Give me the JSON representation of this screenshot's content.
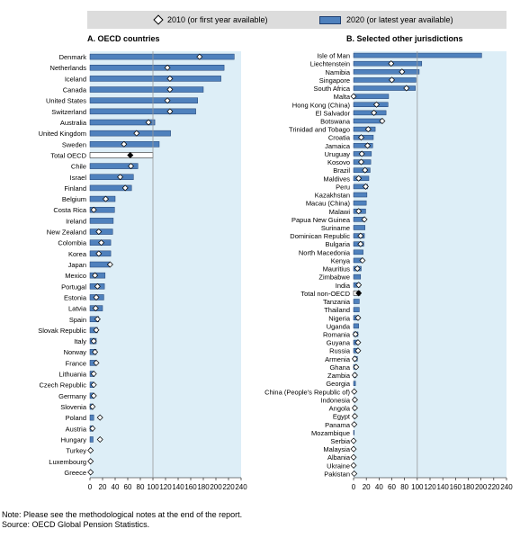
{
  "legend": {
    "items": [
      {
        "label": "2010 (or first year available)",
        "marker": "hollow-diamond"
      },
      {
        "label": "2020 (or latest year available)",
        "marker": "bar"
      }
    ]
  },
  "notes": {
    "note": "Note: Please see the methodological notes at the end of the report.",
    "source": "Source: OECD Global Pension Statistics."
  },
  "colors": {
    "bar_fill": "#4f81bd",
    "bar_stroke": "#1f3f70",
    "panel_background": "#ddeef7",
    "legend_background": "#dcdcdc",
    "reference_line": "#999999"
  },
  "chart_data": [
    {
      "type": "bar",
      "orientation": "horizontal",
      "title": "A. OECD countries",
      "xlim": [
        0,
        240
      ],
      "xticks": [
        0,
        20,
        40,
        60,
        80,
        100,
        120,
        140,
        160,
        180,
        200,
        220,
        240
      ],
      "reference_line": 100,
      "highlight": "Total OECD",
      "categories": [
        "Denmark",
        "Netherlands",
        "Iceland",
        "Canada",
        "United States",
        "Switzerland",
        "Australia",
        "United Kingdom",
        "Sweden",
        "Total OECD",
        "Chile",
        "Israel",
        "Finland",
        "Belgium",
        "Costa Rica",
        "Ireland",
        "New Zealand",
        "Colombia",
        "Korea",
        "Japan",
        "Mexico",
        "Portugal",
        "Estonia",
        "Latvia",
        "Spain",
        "Slovak Republic",
        "Italy",
        "Norway",
        "France",
        "Lithuania",
        "Czech Republic",
        "Germany",
        "Slovenia",
        "Poland",
        "Austria",
        "Hungary",
        "Turkey",
        "Luxembourg",
        "Greece"
      ],
      "series": [
        {
          "name": "2020 (or latest year available)",
          "values": [
            229,
            213,
            208,
            180,
            171,
            168,
            103,
            128,
            110,
            100,
            76,
            69,
            66,
            40,
            39,
            37,
            36,
            33,
            33,
            31,
            24,
            23,
            22,
            20,
            14,
            12,
            10,
            10,
            9,
            7,
            6,
            6,
            5,
            6,
            5,
            5,
            1,
            1,
            1
          ]
        },
        {
          "name": "2010 (or first year available)",
          "values": [
            174,
            123,
            127,
            127,
            123,
            127,
            93,
            74,
            54,
            64,
            65,
            48,
            56,
            25,
            6,
            null,
            14,
            18,
            14,
            32,
            8,
            12,
            10,
            9,
            12,
            10,
            6,
            8,
            10,
            6,
            6,
            6,
            4,
            16,
            4,
            16,
            1,
            1,
            1
          ]
        }
      ]
    },
    {
      "type": "bar",
      "orientation": "horizontal",
      "title": "B. Selected other jurisdictions",
      "xlim": [
        0,
        240
      ],
      "xticks": [
        0,
        20,
        40,
        60,
        80,
        100,
        120,
        140,
        160,
        180,
        200,
        220,
        240
      ],
      "reference_line": 100,
      "highlight": "Total non-OECD",
      "categories": [
        "Isle of Man",
        "Liechtenstein",
        "Namibia",
        "Singapore",
        "South Africa",
        "Malta",
        "Hong Kong (China)",
        "El Salvador",
        "Botswana",
        "Trinidad and Tobago",
        "Croatia",
        "Jamaica",
        "Uruguay",
        "Kosovo",
        "Brazil",
        "Maldives",
        "Peru",
        "Kazakhstan",
        "Macau (China)",
        "Malawi",
        "Papua New Guinea",
        "Suriname",
        "Dominican Republic",
        "Bulgaria",
        "North Macedonia",
        "Kenya",
        "Mauritius",
        "Zimbabwe",
        "India",
        "Total non-OECD",
        "Tanzania",
        "Thailand",
        "Nigeria",
        "Uganda",
        "Romania",
        "Guyana",
        "Russia",
        "Armenia",
        "Ghana",
        "Zambia",
        "Georgia",
        "China (People's Republic of)",
        "Indonesia",
        "Angola",
        "Egypt",
        "Panama",
        "Mozambique",
        "Serbia",
        "Malaysia",
        "Albania",
        "Ukraine",
        "Pakistan"
      ],
      "series": [
        {
          "name": "2020 (or latest year available)",
          "values": [
            201,
            107,
            103,
            98,
            97,
            55,
            54,
            51,
            46,
            34,
            31,
            30,
            28,
            27,
            26,
            24,
            22,
            21,
            20,
            19,
            18,
            18,
            17,
            16,
            15,
            14,
            12,
            11,
            10,
            10,
            9,
            9,
            8,
            8,
            7,
            7,
            6,
            6,
            4,
            4,
            3,
            2,
            2,
            2,
            2,
            2,
            1,
            1,
            1,
            1,
            1,
            1
          ]
        },
        {
          "name": "2010 (or first year available)",
          "values": [
            null,
            59,
            76,
            60,
            83,
            0,
            36,
            32,
            45,
            23,
            12,
            22,
            13,
            12,
            18,
            8,
            19,
            null,
            null,
            8,
            17,
            null,
            11,
            11,
            null,
            14,
            6,
            null,
            8,
            8,
            null,
            null,
            7,
            null,
            3,
            7,
            7,
            2,
            4,
            2,
            null,
            1,
            2,
            2,
            2,
            1,
            null,
            0,
            0,
            0,
            0,
            1
          ]
        }
      ]
    }
  ]
}
